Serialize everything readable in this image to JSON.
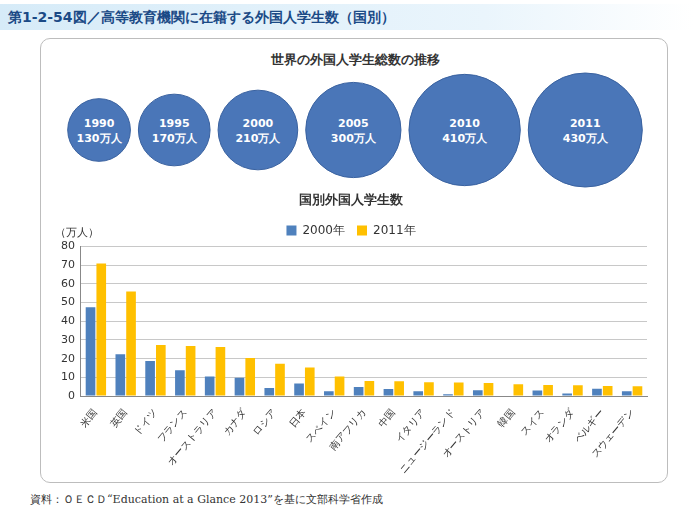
{
  "figure_title": "第1-2-54図／高等教育機関に在籍する外国人学生数（国別）",
  "source": "資料：ＯＥＣＤ“Education at a Glance 2013”を基に文部科学省作成",
  "chart_data": [
    {
      "type": "bubble",
      "title": "世界の外国人学生総数の推移",
      "categories": [
        "1990",
        "1995",
        "2000",
        "2005",
        "2010",
        "2011"
      ],
      "values": [
        130,
        170,
        210,
        300,
        410,
        430
      ],
      "value_labels": [
        "130万人",
        "170万人",
        "210万人",
        "300万人",
        "410万人",
        "430万人"
      ],
      "color": "#4a76b8",
      "data_labels": true,
      "tick_labels": false,
      "grid": false
    },
    {
      "type": "bar",
      "title": "国別外国人学生数",
      "ylabel": "（万人）",
      "categories": [
        "米国",
        "英国",
        "ドイツ",
        "フランス",
        "オーストラリア",
        "カナダ",
        "ロシア",
        "日本",
        "スペイン",
        "南アフリカ",
        "中国",
        "イタリア",
        "ニュージーランド",
        "オーストリア",
        "韓国",
        "スイス",
        "オランダ",
        "ベルギー",
        "スウェーデン"
      ],
      "series": [
        {
          "name": "2000年",
          "color": "#4f81bd",
          "values": [
            47.5,
            22.3,
            18.8,
            13.8,
            10.5,
            9.8,
            4.3,
            6.7,
            2.6,
            4.8,
            3.8,
            2.5,
            1.0,
            3.1,
            null,
            2.9,
            1.4,
            3.9,
            2.6
          ]
        },
        {
          "name": "2011年",
          "color": "#ffc000",
          "values": [
            70.9,
            56.0,
            27.3,
            26.8,
            26.2,
            20.4,
            17.3,
            15.3,
            10.5,
            8.1,
            7.9,
            7.3,
            7.2,
            7.0,
            6.3,
            5.9,
            5.8,
            5.4,
            5.2
          ]
        }
      ],
      "ylim": [
        0,
        80
      ],
      "yticks": [
        0,
        10,
        20,
        30,
        40,
        50,
        60,
        70,
        80
      ],
      "grid": true,
      "legend": "top"
    }
  ]
}
